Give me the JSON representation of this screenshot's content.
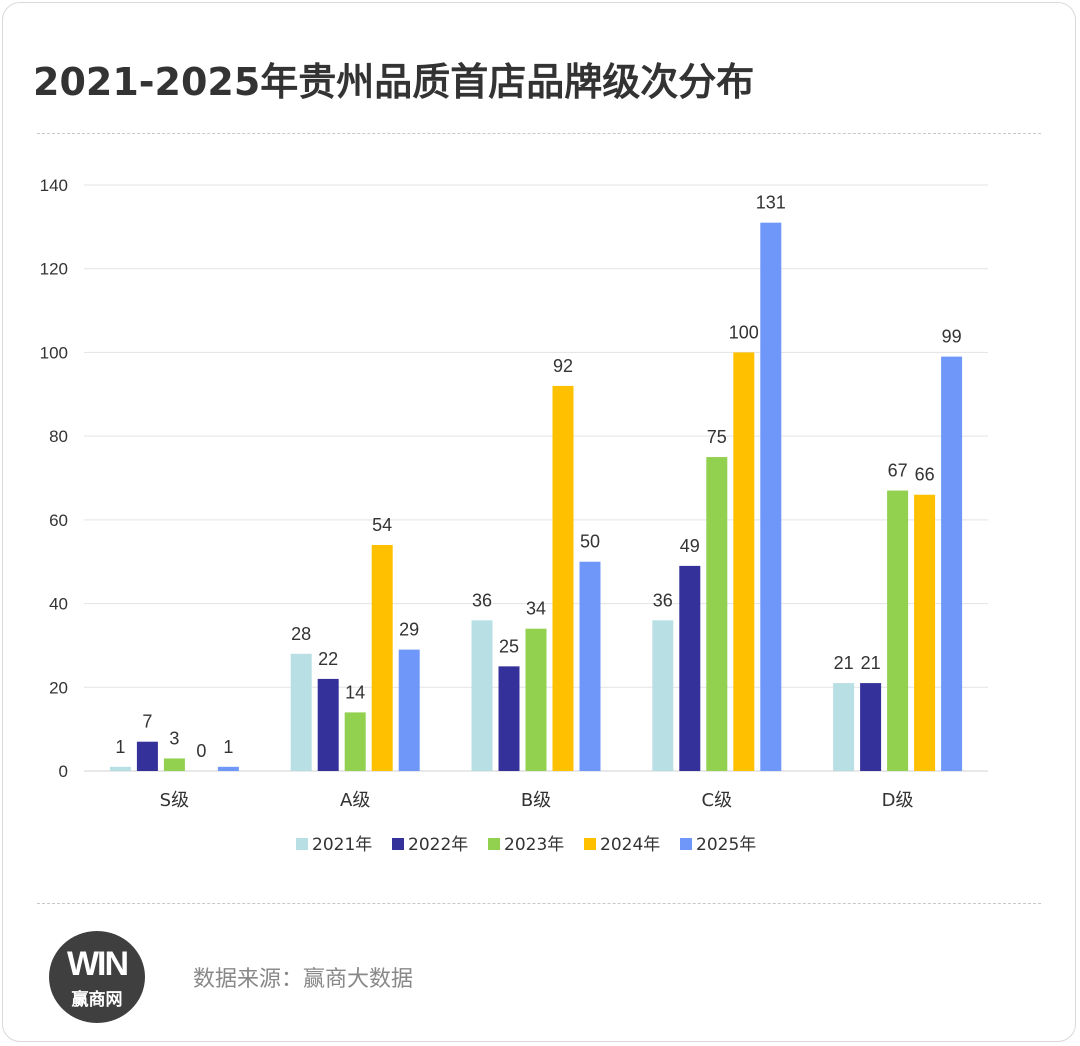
{
  "page": {
    "title": "2021-2025年贵州品质首店品牌级次分布",
    "source_label": "数据来源：",
    "source_value": "赢商大数据",
    "logo_mark": "WIN",
    "logo_text": "赢商网"
  },
  "colors": {
    "2021年": "#b8dfe3",
    "2022年": "#35319a",
    "2023年": "#92d050",
    "2024年": "#ffc000",
    "2025年": "#6f97f9",
    "grid": "#e3e3e3",
    "axis_text": "#333333"
  },
  "chart_data": {
    "type": "bar",
    "title": "",
    "xlabel": "",
    "ylabel": "",
    "ylim": [
      0,
      140
    ],
    "yticks": [
      0,
      20,
      40,
      60,
      80,
      100,
      120,
      140
    ],
    "grid": true,
    "legend_position": "bottom",
    "categories": [
      "S级",
      "A级",
      "B级",
      "C级",
      "D级"
    ],
    "series": [
      {
        "name": "2021年",
        "values": [
          1,
          28,
          36,
          36,
          21
        ]
      },
      {
        "name": "2022年",
        "values": [
          7,
          22,
          25,
          49,
          21
        ]
      },
      {
        "name": "2023年",
        "values": [
          3,
          14,
          34,
          75,
          67
        ]
      },
      {
        "name": "2024年",
        "values": [
          0,
          54,
          92,
          100,
          66
        ]
      },
      {
        "name": "2025年",
        "values": [
          1,
          29,
          50,
          131,
          99
        ]
      }
    ]
  }
}
